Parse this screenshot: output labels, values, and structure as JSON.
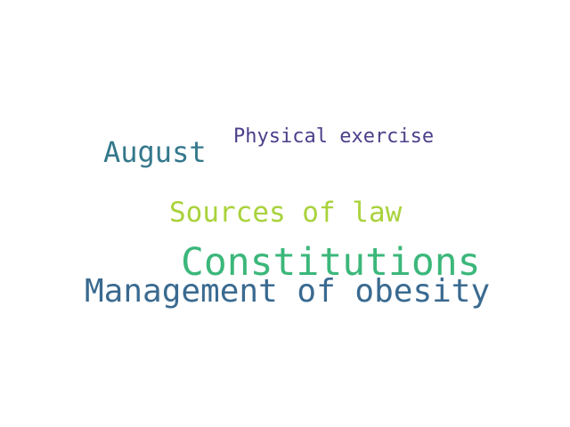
{
  "words": [
    {
      "text": "Physical exercise",
      "color": "#4b3f8a"
    },
    {
      "text": "August",
      "color": "#34788c"
    },
    {
      "text": "Sources of law",
      "color": "#a9d23a"
    },
    {
      "text": "Constitutions",
      "color": "#3bb77a"
    },
    {
      "text": "Management of obesity",
      "color": "#3a6a90"
    }
  ]
}
